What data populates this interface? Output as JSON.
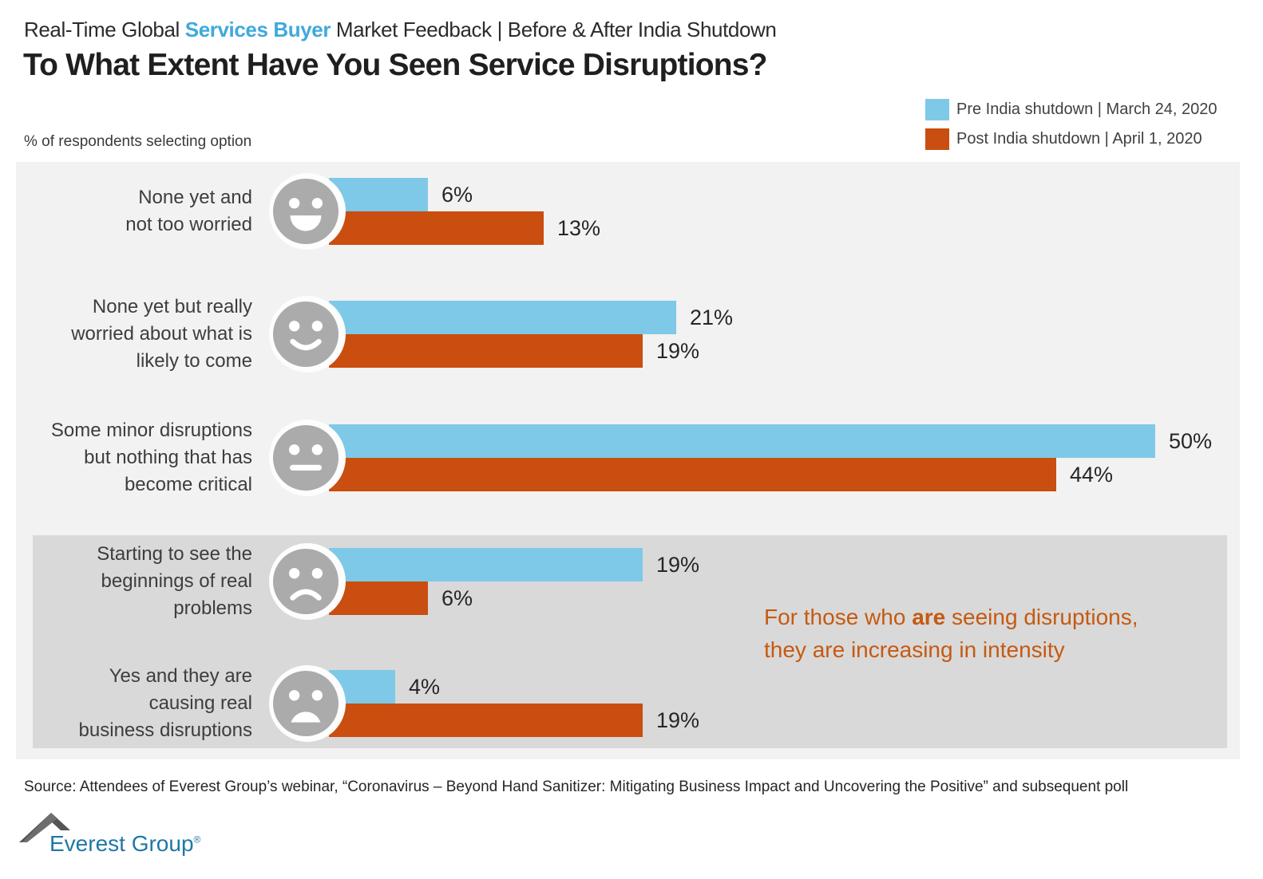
{
  "header": {
    "kicker_pre": "Real-Time Global ",
    "kicker_highlight": "Services Buyer",
    "kicker_post": " Market Feedback | Before & After India Shutdown",
    "title": "To What Extent Have You Seen Service Disruptions?"
  },
  "legend": [
    {
      "label": "Pre India shutdown | March 24, 2020",
      "color": "#7ec9e8"
    },
    {
      "label": "Post India shutdown | April 1, 2020",
      "color": "#c94e0f"
    }
  ],
  "axis_note": "% of respondents selecting option",
  "chart_data": {
    "type": "bar",
    "orientation": "horizontal",
    "unit": "%",
    "xlim": [
      0,
      55
    ],
    "grid": false,
    "legend_position": "top-right",
    "categories": [
      [
        "None yet and",
        "not too worried"
      ],
      [
        "None yet but really",
        "worried about what is",
        "likely to come"
      ],
      [
        "Some minor disruptions",
        "but nothing that has",
        "become critical"
      ],
      [
        "Starting to see the",
        "beginnings of real",
        "problems"
      ],
      [
        "Yes and they are",
        "causing real",
        "business disruptions"
      ]
    ],
    "category_face_icons": [
      "happy-face-icon",
      "smile-face-icon",
      "neutral-face-icon",
      "frown-face-icon",
      "open-frown-face-icon"
    ],
    "face_moods": [
      "happy",
      "smile",
      "neutral",
      "frown",
      "open-frown"
    ],
    "series": [
      {
        "name": "Pre India shutdown | March 24, 2020",
        "color": "#7ec9e8",
        "values": [
          6,
          21,
          50,
          19,
          4
        ]
      },
      {
        "name": "Post India shutdown | April 1, 2020",
        "color": "#c94e0f",
        "values": [
          13,
          19,
          44,
          6,
          19
        ]
      }
    ]
  },
  "annotation": {
    "pre": "For those who ",
    "bold": "are",
    "post": " seeing disruptions,",
    "line2": "they are increasing in intensity",
    "color": "#c55a11"
  },
  "source": "Source: Attendees of Everest Group’s webinar, “Coronavirus – Beyond Hand Sanitizer: Mitigating Business Impact and Uncovering the Positive” and subsequent poll",
  "logo": {
    "text": "Everest Group",
    "registered": "®"
  },
  "colors": {
    "kicker_highlight": "#3fa9dc",
    "face_gray": "#ababab",
    "plot_bg": "#f2f2f2",
    "plot_bg_dark": "#d9d9d9"
  }
}
